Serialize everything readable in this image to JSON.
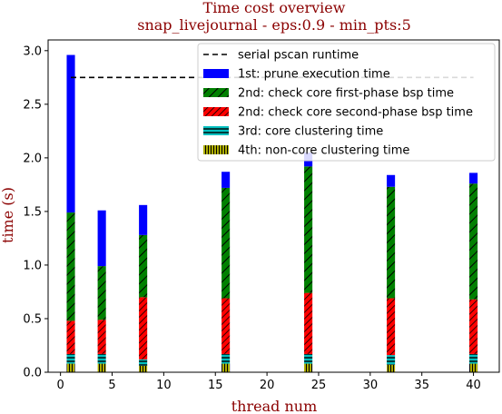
{
  "chart_data": {
    "type": "bar",
    "title": "Time cost overview",
    "subtitle": "snap_livejournal - eps:0.9 - min_pts:5",
    "xlabel": "thread num",
    "ylabel": "time (s)",
    "xlim": [
      -1.2,
      42.5
    ],
    "ylim": [
      0,
      3.1
    ],
    "xticks": [
      "0",
      "5",
      "10",
      "15",
      "20",
      "25",
      "30",
      "35",
      "40"
    ],
    "yticks": [
      "0.0",
      "0.5",
      "1.0",
      "1.5",
      "2.0",
      "2.5",
      "3.0"
    ],
    "x": [
      1,
      4,
      8,
      16,
      24,
      32,
      40
    ],
    "bar_width": 0.8,
    "serial_runtime": {
      "name": "serial pscan runtime",
      "value": 2.75,
      "x_range": [
        1,
        40
      ],
      "style": "dashed",
      "color": "#000000"
    },
    "legend_position": "top-right",
    "series": [
      {
        "name": "4th: non-core clustering time",
        "color": "#bfbf00",
        "hatch": "vertical",
        "values": [
          0.08,
          0.08,
          0.06,
          0.08,
          0.08,
          0.07,
          0.08
        ]
      },
      {
        "name": "3rd: core clustering time",
        "color": "#00bfbf",
        "hatch": "horizontal",
        "values": [
          0.09,
          0.09,
          0.06,
          0.09,
          0.09,
          0.09,
          0.09
        ]
      },
      {
        "name": "2nd: check core second-phase bsp time",
        "color": "#ff0000",
        "hatch": "diagonal-dense",
        "values": [
          0.31,
          0.32,
          0.58,
          0.52,
          0.57,
          0.53,
          0.51
        ]
      },
      {
        "name": "2nd: check core first-phase bsp time",
        "color": "#008000",
        "hatch": "diagonal",
        "values": [
          1.01,
          0.5,
          0.58,
          1.03,
          1.18,
          1.04,
          1.08
        ]
      },
      {
        "name": "1st: prune execution time",
        "color": "#0000ff",
        "hatch": "none",
        "values": [
          1.47,
          0.52,
          0.28,
          0.15,
          0.13,
          0.11,
          0.1
        ]
      }
    ]
  }
}
